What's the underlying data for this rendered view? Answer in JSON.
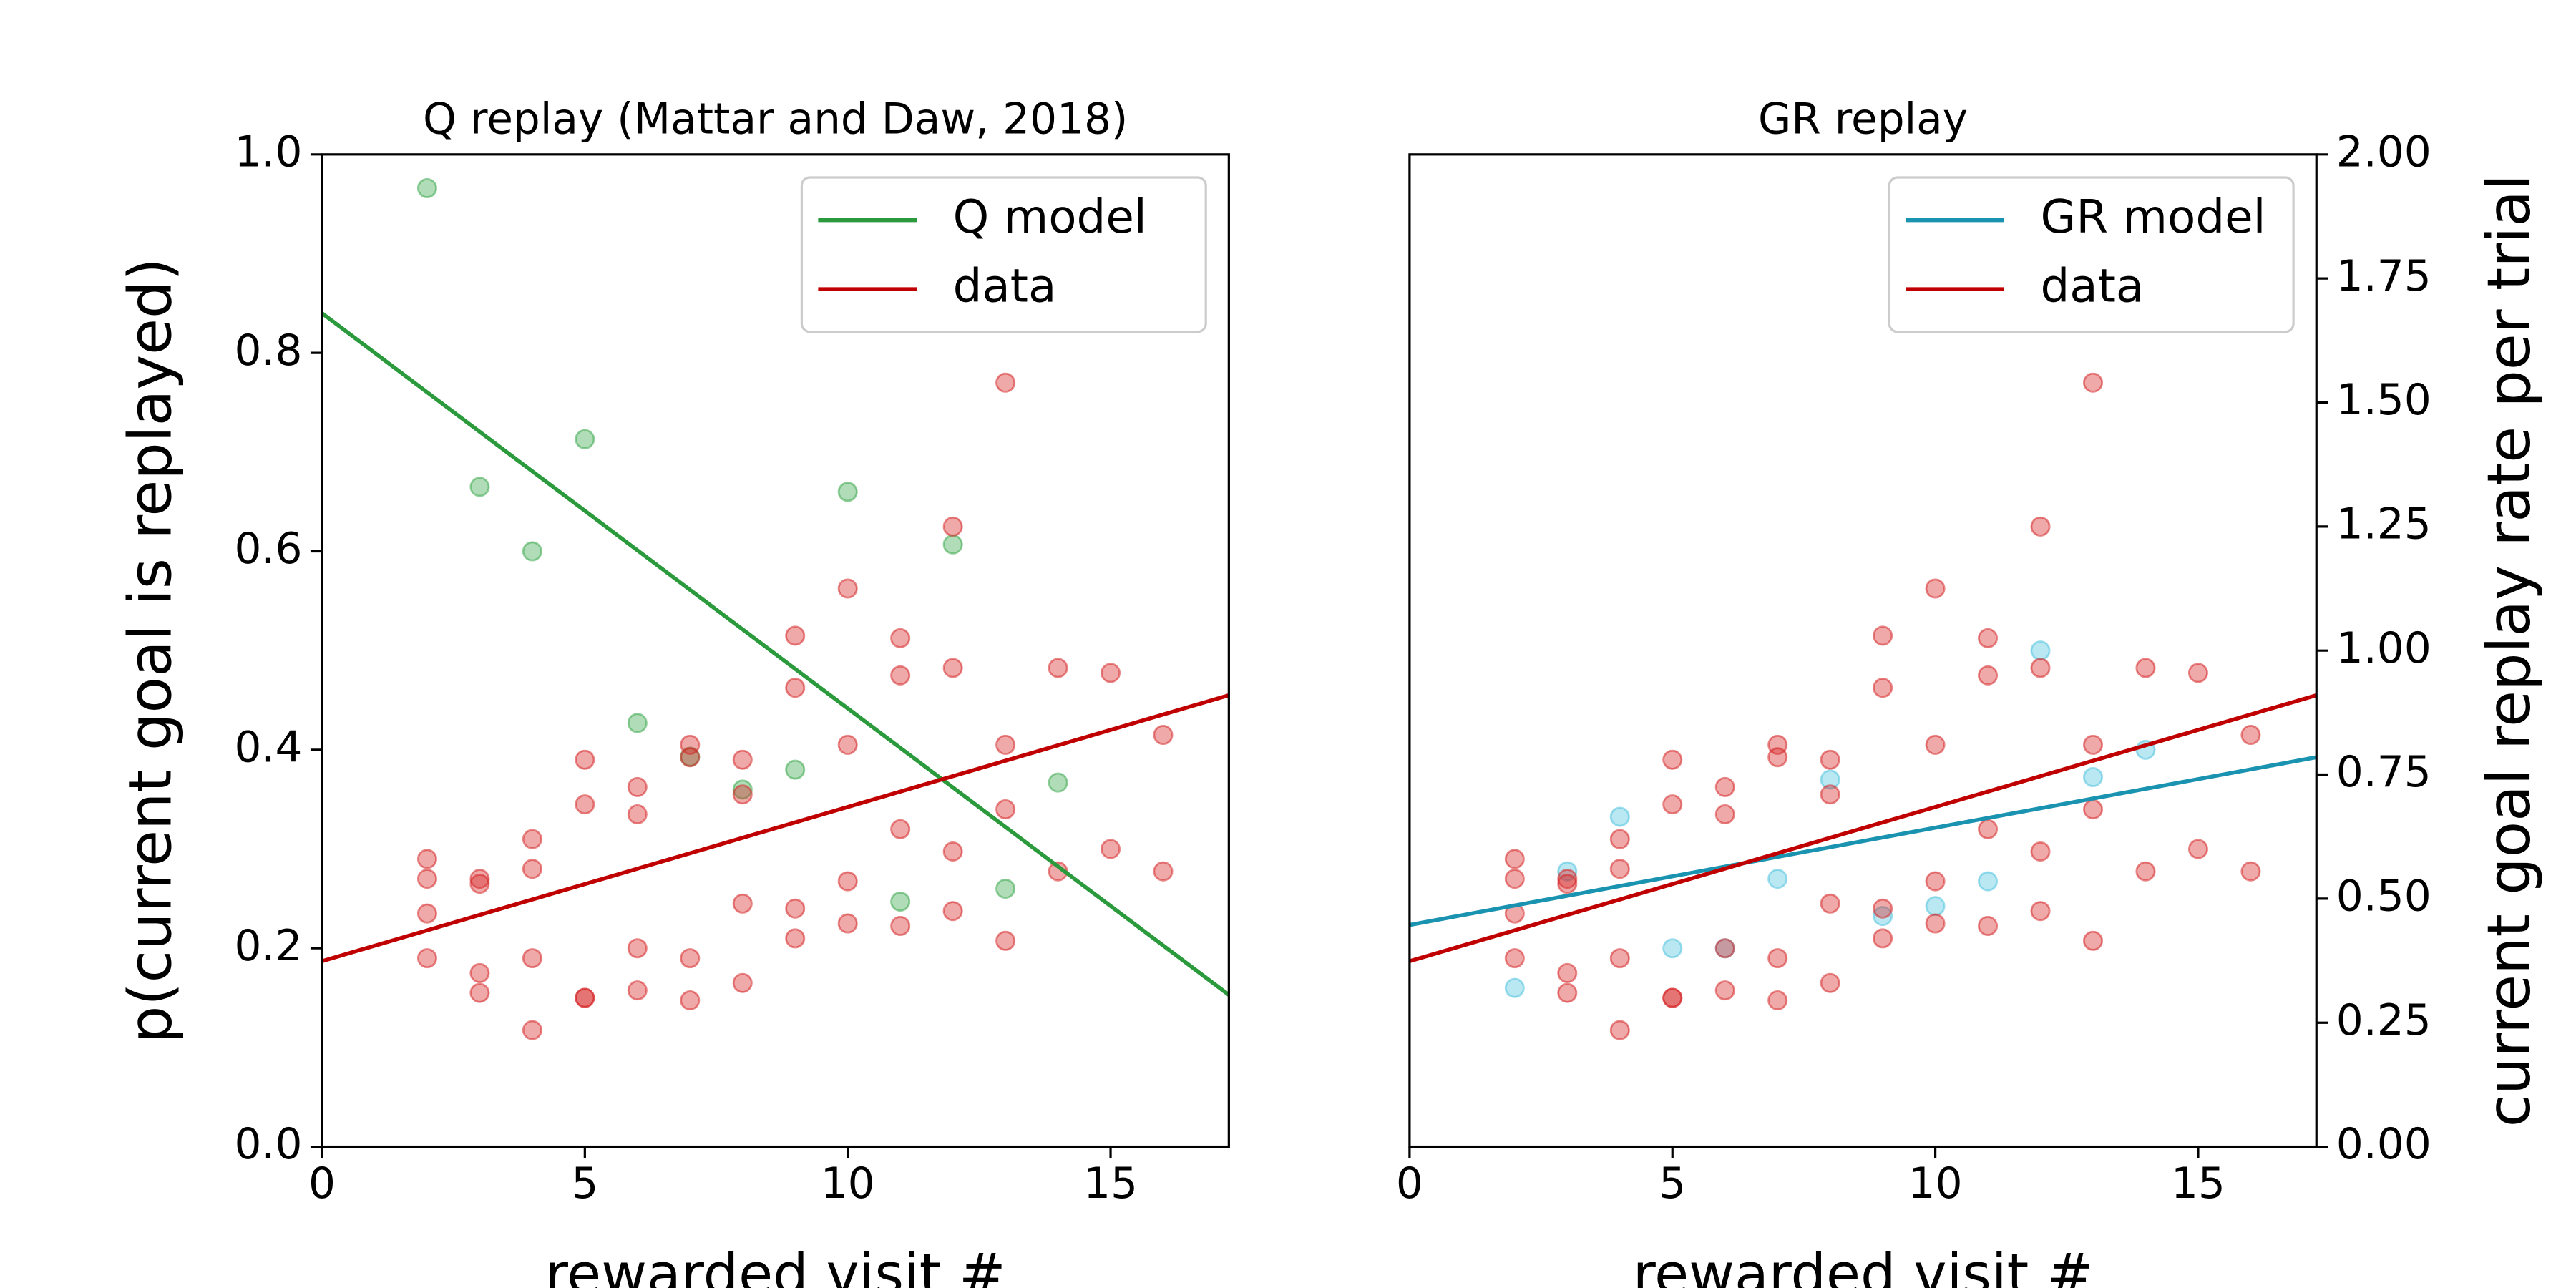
{
  "chart_data": [
    {
      "type": "scatter",
      "title": "Q replay (Mattar and Daw, 2018)",
      "xlabel": "rewarded visit #",
      "ylabel": "p(current goal is replayed)",
      "ylabel_color": "#2a9a3c",
      "xlim": [
        0,
        17.25
      ],
      "xticks": [
        0,
        5,
        10,
        15
      ],
      "ylim": [
        0,
        1
      ],
      "yticks": [
        {
          "value": 0,
          "label": "0.0"
        },
        0.2,
        0.4,
        0.6,
        0.8,
        {
          "value": 1,
          "label": "1.0"
        }
      ],
      "y2lim": [
        0,
        2
      ],
      "legend": "upper right",
      "series": [
        {
          "type": "scatter",
          "color": "#3aa84c",
          "x": [
            2,
            3,
            4,
            5,
            6,
            7,
            8,
            9,
            10,
            11,
            12,
            13,
            14
          ],
          "values": [
            0.966,
            0.665,
            0.6,
            0.713,
            0.427,
            0.393,
            0.36,
            0.38,
            0.66,
            0.247,
            0.607,
            0.26,
            0.367
          ]
        },
        {
          "type": "scatter",
          "color": "#d62728",
          "axis": "y2",
          "x": [
            2,
            2,
            2,
            2,
            3,
            3,
            3,
            3,
            4,
            4,
            4,
            4,
            5,
            5,
            5,
            5,
            6,
            6,
            6,
            6,
            7,
            7,
            7,
            7,
            8,
            8,
            8,
            8,
            9,
            9,
            9,
            9,
            10,
            10,
            10,
            10,
            11,
            11,
            11,
            11,
            12,
            12,
            12,
            12,
            13,
            13,
            13,
            13,
            14,
            14,
            15,
            15,
            16,
            16
          ],
          "values": [
            0.58,
            0.54,
            0.47,
            0.38,
            0.54,
            0.53,
            0.35,
            0.31,
            0.62,
            0.56,
            0.38,
            0.235,
            0.78,
            0.69,
            0.3,
            0.3,
            0.725,
            0.67,
            0.4,
            0.315,
            0.81,
            0.785,
            0.38,
            0.295,
            0.78,
            0.71,
            0.49,
            0.33,
            1.03,
            0.925,
            0.48,
            0.42,
            1.125,
            0.81,
            0.535,
            0.45,
            1.025,
            0.95,
            0.64,
            0.445,
            1.25,
            0.965,
            0.595,
            0.475,
            1.54,
            0.81,
            0.68,
            0.415,
            0.965,
            0.555,
            0.955,
            0.6,
            0.83,
            0.555
          ]
        },
        {
          "type": "line",
          "name": "Q model",
          "color": "#2a9a3c",
          "x": [
            0,
            17.25
          ],
          "values": [
            0.84,
            0.153
          ]
        },
        {
          "type": "line",
          "name": "data",
          "color": "#c00000",
          "axis": "y2",
          "x": [
            0,
            17.25
          ],
          "values": [
            0.374,
            0.91
          ]
        }
      ]
    },
    {
      "type": "scatter",
      "title": "GR replay",
      "xlabel": "rewarded visit #",
      "y2label": "current goal replay rate per trial",
      "y2label_color": "#c00000",
      "xlim": [
        0,
        17.25
      ],
      "xticks": [
        0,
        5,
        10,
        15
      ],
      "y2lim": [
        0,
        2
      ],
      "y2ticks": [
        {
          "value": 0,
          "label": "0.00"
        },
        0.25,
        {
          "value": 0.5,
          "label": "0.50"
        },
        0.75,
        {
          "value": 1,
          "label": "1.00"
        },
        1.25,
        {
          "value": 1.5,
          "label": "1.50"
        },
        1.75,
        {
          "value": 2,
          "label": "2.00"
        }
      ],
      "legend": "upper right",
      "series": [
        {
          "type": "scatter",
          "color": "#4fc3de",
          "axis": "y2",
          "x": [
            2,
            3,
            4,
            5,
            6,
            7,
            8,
            9,
            10,
            11,
            12,
            13,
            14
          ],
          "values": [
            0.32,
            0.555,
            0.665,
            0.4,
            0.4,
            0.54,
            0.74,
            0.465,
            0.485,
            0.535,
            1.0,
            0.745,
            0.8
          ]
        },
        {
          "type": "scatter",
          "color": "#d62728",
          "axis": "y2",
          "x": [
            2,
            2,
            2,
            2,
            3,
            3,
            3,
            3,
            4,
            4,
            4,
            4,
            5,
            5,
            5,
            5,
            6,
            6,
            6,
            6,
            7,
            7,
            7,
            7,
            8,
            8,
            8,
            8,
            9,
            9,
            9,
            9,
            10,
            10,
            10,
            10,
            11,
            11,
            11,
            11,
            12,
            12,
            12,
            12,
            13,
            13,
            13,
            13,
            14,
            14,
            15,
            15,
            16,
            16
          ],
          "values": [
            0.58,
            0.54,
            0.47,
            0.38,
            0.54,
            0.53,
            0.35,
            0.31,
            0.62,
            0.56,
            0.38,
            0.235,
            0.78,
            0.69,
            0.3,
            0.3,
            0.725,
            0.67,
            0.4,
            0.315,
            0.81,
            0.785,
            0.38,
            0.295,
            0.78,
            0.71,
            0.49,
            0.33,
            1.03,
            0.925,
            0.48,
            0.42,
            1.125,
            0.81,
            0.535,
            0.45,
            1.025,
            0.95,
            0.64,
            0.445,
            1.25,
            0.965,
            0.595,
            0.475,
            1.54,
            0.81,
            0.68,
            0.415,
            0.965,
            0.555,
            0.955,
            0.6,
            0.83,
            0.555
          ]
        },
        {
          "type": "line",
          "name": "GR model",
          "color": "#1a93b0",
          "axis": "y2",
          "x": [
            0,
            17.25
          ],
          "values": [
            0.447,
            0.785
          ]
        },
        {
          "type": "line",
          "name": "data",
          "color": "#c00000",
          "axis": "y2",
          "x": [
            0,
            17.25
          ],
          "values": [
            0.374,
            0.91
          ]
        }
      ]
    }
  ]
}
